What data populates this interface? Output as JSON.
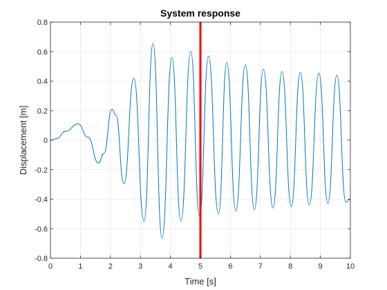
{
  "chart_data": {
    "type": "line",
    "title": "System response",
    "xlabel": "Time [s]",
    "ylabel": "Displacement [m]",
    "xlim": [
      0,
      10
    ],
    "ylim": [
      -0.8,
      0.8
    ],
    "grid": true,
    "x_ticks": [
      0,
      1,
      2,
      3,
      4,
      5,
      6,
      7,
      8,
      9,
      10
    ],
    "x_tick_labels": [
      "0",
      "1",
      "2",
      "3",
      "4",
      "5",
      "6",
      "7",
      "8",
      "9",
      "10"
    ],
    "y_ticks": [
      -0.8,
      -0.6,
      -0.4,
      -0.2,
      0,
      0.2,
      0.4,
      0.6,
      0.8
    ],
    "y_tick_labels": [
      "-0.8",
      "-0.6",
      "-0.4",
      "-0.2",
      "0",
      "0.2",
      "0.4",
      "0.6",
      "0.8"
    ],
    "series": [
      {
        "color": "#0072BD",
        "x": [
          0,
          0.2,
          0.5,
          0.92,
          1.25,
          1.6,
          1.78,
          2.05,
          2.18,
          2.45,
          2.78,
          3.12,
          3.42,
          3.72,
          4.05,
          4.35,
          4.68,
          4.97,
          5.27,
          5.6,
          5.88,
          6.18,
          6.5,
          6.8,
          7.1,
          7.42,
          7.72,
          8.03,
          8.33,
          8.63,
          8.95,
          9.25,
          9.55,
          9.85,
          10.0
        ],
        "y": [
          0,
          0.01,
          0.06,
          0.11,
          0.02,
          -0.155,
          -0.09,
          0.21,
          0.17,
          -0.295,
          0.42,
          -0.55,
          0.655,
          -0.665,
          0.56,
          -0.55,
          0.6,
          -0.515,
          0.57,
          -0.5,
          0.525,
          -0.48,
          0.51,
          -0.47,
          0.48,
          -0.46,
          0.465,
          -0.45,
          0.46,
          -0.44,
          0.455,
          -0.43,
          0.44,
          -0.42,
          -0.4
        ]
      }
    ],
    "markers": [
      {
        "type": "vertical-line",
        "x": 5,
        "color": "#FF0000"
      }
    ]
  }
}
